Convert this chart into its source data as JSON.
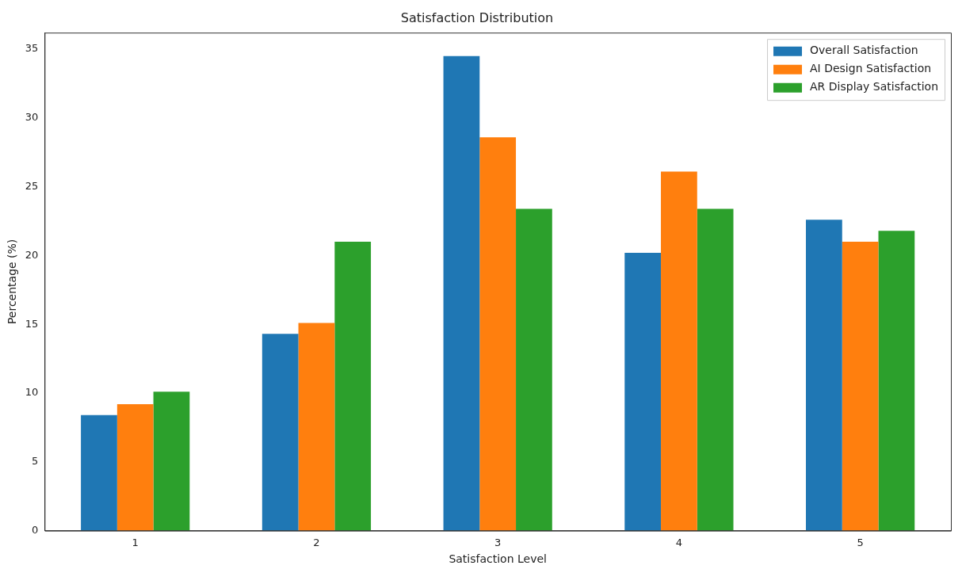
{
  "chart_data": {
    "type": "bar",
    "title": "Satisfaction Distribution",
    "xlabel": "Satisfaction Level",
    "ylabel": "Percentage (%)",
    "categories": [
      "1",
      "2",
      "3",
      "4",
      "5"
    ],
    "series": [
      {
        "name": "Overall Satisfaction",
        "color": "#1f77b4",
        "values": [
          8.4,
          14.3,
          34.5,
          20.2,
          22.6
        ]
      },
      {
        "name": "AI Design Satisfaction",
        "color": "#ff7f0e",
        "values": [
          9.2,
          15.1,
          28.6,
          26.1,
          21.0
        ]
      },
      {
        "name": "AR Display Satisfaction",
        "color": "#2ca02c",
        "values": [
          10.1,
          21.0,
          23.4,
          23.4,
          21.8
        ]
      }
    ],
    "ylim": [
      0,
      36.2
    ],
    "yticks": [
      0,
      5,
      10,
      15,
      20,
      25,
      30,
      35
    ],
    "grid": false,
    "legend": "top right"
  }
}
